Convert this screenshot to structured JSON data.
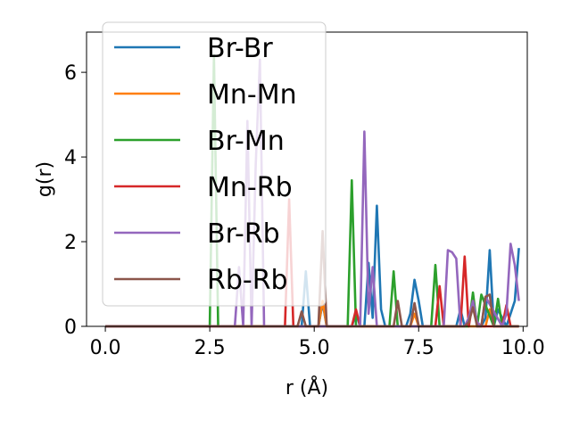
{
  "chart_data": {
    "type": "line",
    "xlabel": "r (Å)",
    "ylabel": "g(r)",
    "xlim": [
      -0.45,
      10.1
    ],
    "ylim": [
      0,
      6.95
    ],
    "x_ticks": [
      0.0,
      2.5,
      5.0,
      7.5,
      10.0
    ],
    "x_tick_labels": [
      "0.0",
      "2.5",
      "5.0",
      "7.5",
      "10.0"
    ],
    "y_ticks": [
      0,
      2,
      4,
      6
    ],
    "y_tick_labels": [
      "0",
      "2",
      "4",
      "6"
    ],
    "grid": false,
    "legend_position": "top-left",
    "series": [
      {
        "name": "Br-Br",
        "color": "#1f77b4",
        "x": [
          0,
          4.7,
          4.8,
          4.9,
          5.0,
          5.1,
          5.2,
          5.3,
          5.9,
          6.0,
          6.1,
          6.2,
          6.3,
          6.4,
          6.5,
          6.6,
          6.7,
          7.2,
          7.3,
          7.4,
          7.5,
          7.6,
          7.7,
          8.4,
          8.5,
          8.6,
          9.0,
          9.1,
          9.2,
          9.3,
          9.4,
          9.6,
          9.7,
          9.8,
          9.9
        ],
        "y": [
          0,
          0,
          1.3,
          0,
          0,
          0,
          0.55,
          0,
          0,
          0.3,
          0,
          0,
          1.5,
          0.2,
          2.85,
          0.4,
          0,
          0,
          0.3,
          1.1,
          0.6,
          0,
          0,
          0,
          0.4,
          0,
          0,
          0.2,
          1.8,
          0,
          0.4,
          0,
          0.3,
          0.6,
          1.85
        ]
      },
      {
        "name": "Mn-Mn",
        "color": "#ff7f0e",
        "x": [
          0,
          5.1,
          5.2,
          5.3,
          7.3,
          7.4,
          7.5,
          9.1,
          9.2,
          9.3,
          9.9
        ],
        "y": [
          0,
          0,
          0.6,
          0,
          0,
          0.3,
          0,
          0,
          0.4,
          0,
          0
        ]
      },
      {
        "name": "Br-Mn",
        "color": "#2ca02c",
        "x": [
          0,
          2.5,
          2.6,
          2.7,
          5.8,
          5.9,
          6.0,
          6.8,
          6.9,
          7.0,
          7.8,
          7.9,
          8.0,
          8.7,
          8.8,
          8.9,
          9.0,
          9.3,
          9.4,
          9.5,
          9.9
        ],
        "y": [
          0,
          0,
          6.4,
          0,
          0,
          3.45,
          0,
          0,
          1.3,
          0,
          0,
          1.45,
          0,
          0,
          0.8,
          0,
          0.75,
          0,
          0.65,
          0,
          0
        ]
      },
      {
        "name": "Mn-Rb",
        "color": "#d62728",
        "x": [
          0,
          4.3,
          4.4,
          4.5,
          5.9,
          6.0,
          6.1,
          7.9,
          8.0,
          8.1,
          8.5,
          8.6,
          8.7,
          8.8,
          8.9,
          9.5,
          9.6,
          9.7,
          9.9
        ],
        "y": [
          0,
          0,
          3.0,
          0,
          0,
          0.4,
          0,
          0,
          0.95,
          0,
          0,
          1.65,
          0,
          0.6,
          0,
          0,
          0.5,
          0,
          0
        ]
      },
      {
        "name": "Br-Rb",
        "color": "#9467bd",
        "x": [
          0,
          3.1,
          3.2,
          3.3,
          3.4,
          3.5,
          3.6,
          3.7,
          3.8,
          3.9,
          6.1,
          6.2,
          6.3,
          6.4,
          6.5,
          8.1,
          8.2,
          8.3,
          8.4,
          8.5,
          8.6,
          8.7,
          8.8,
          8.9,
          9.0,
          9.1,
          9.5,
          9.6,
          9.7,
          9.8,
          9.9
        ],
        "y": [
          0,
          0,
          1.4,
          0,
          4.85,
          0,
          3.8,
          6.3,
          0,
          0,
          0,
          4.6,
          0.3,
          1.4,
          0,
          0,
          1.8,
          1.75,
          1.6,
          0,
          0,
          0.2,
          0.6,
          0.1,
          0,
          0.7,
          0,
          0.3,
          1.95,
          1.45,
          0.6
        ]
      },
      {
        "name": "Rb-Rb",
        "color": "#8c564b",
        "x": [
          0,
          4.6,
          4.7,
          4.8,
          5.1,
          5.2,
          5.3,
          6.9,
          7.0,
          7.1,
          7.3,
          7.4,
          7.5,
          8.6,
          8.7,
          8.8,
          8.9,
          9.0,
          9.1,
          9.2,
          9.3,
          9.9
        ],
        "y": [
          0,
          0,
          0.35,
          0,
          0,
          2.25,
          0,
          0,
          0.6,
          0,
          0,
          0.55,
          0,
          0,
          0.1,
          0.45,
          0,
          0,
          0.7,
          0.75,
          0,
          0
        ]
      }
    ]
  }
}
